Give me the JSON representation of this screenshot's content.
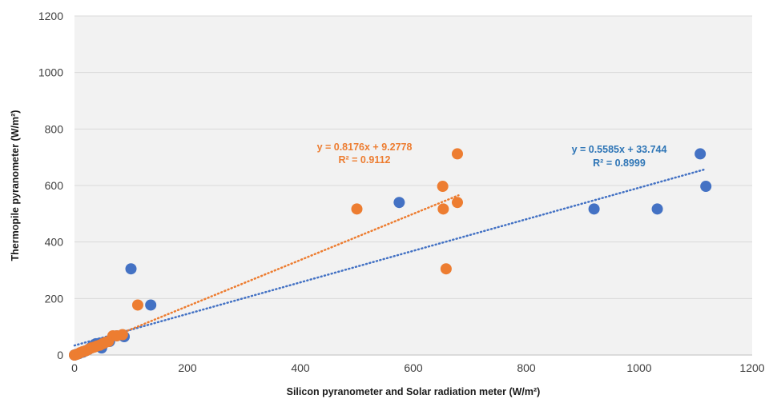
{
  "colors": {
    "series_blue": "#4472C4",
    "series_orange": "#ED7D31",
    "plot_bg": "#F2F2F2",
    "grid": "#D9D9D9"
  },
  "chart_data": {
    "type": "scatter",
    "title": "",
    "xlabel": "Silicon pyranometer and Solar radiation meter (W/m²)",
    "ylabel": "Thermopile pyranometer (W/m²)",
    "xlim": [
      0,
      1200
    ],
    "ylim": [
      0,
      1200
    ],
    "x_ticks": [
      "0",
      "200",
      "400",
      "600",
      "800",
      "1000",
      "1200"
    ],
    "y_ticks": [
      "0",
      "200",
      "400",
      "600",
      "800",
      "1000",
      "1200"
    ],
    "grid": "horizontal",
    "legend": "none",
    "series": [
      {
        "color": "#4472C4",
        "points": [
          [
            0,
            0
          ],
          [
            3,
            2
          ],
          [
            8,
            5
          ],
          [
            15,
            10
          ],
          [
            20,
            15
          ],
          [
            25,
            20
          ],
          [
            30,
            28
          ],
          [
            35,
            35
          ],
          [
            38,
            40
          ],
          [
            45,
            42
          ],
          [
            48,
            25
          ],
          [
            55,
            45
          ],
          [
            62,
            48
          ],
          [
            75,
            68
          ],
          [
            88,
            65
          ],
          [
            100,
            305
          ],
          [
            135,
            177
          ],
          [
            575,
            540
          ],
          [
            920,
            517
          ],
          [
            1032,
            517
          ],
          [
            1108,
            712
          ],
          [
            1118,
            597
          ]
        ],
        "trendline": {
          "slope": 0.5585,
          "intercept": 33.744,
          "x_range": [
            0,
            1118
          ]
        },
        "equation": "y = 0.5585x + 33.744",
        "r2": "R² = 0.8999"
      },
      {
        "color": "#ED7D31",
        "points": [
          [
            0,
            0
          ],
          [
            5,
            3
          ],
          [
            10,
            8
          ],
          [
            15,
            12
          ],
          [
            20,
            15
          ],
          [
            25,
            20
          ],
          [
            30,
            25
          ],
          [
            35,
            28
          ],
          [
            40,
            32
          ],
          [
            45,
            35
          ],
          [
            50,
            40
          ],
          [
            55,
            45
          ],
          [
            60,
            48
          ],
          [
            68,
            68
          ],
          [
            75,
            68
          ],
          [
            85,
            72
          ],
          [
            112,
            177
          ],
          [
            500,
            517
          ],
          [
            652,
            597
          ],
          [
            653,
            517
          ],
          [
            658,
            305
          ],
          [
            678,
            712
          ],
          [
            678,
            540
          ]
        ],
        "trendline": {
          "slope": 0.8176,
          "intercept": 9.2778,
          "x_range": [
            0,
            680
          ]
        },
        "equation": "y = 0.8176x + 9.2778",
        "r2": "R² = 0.9112"
      }
    ]
  }
}
